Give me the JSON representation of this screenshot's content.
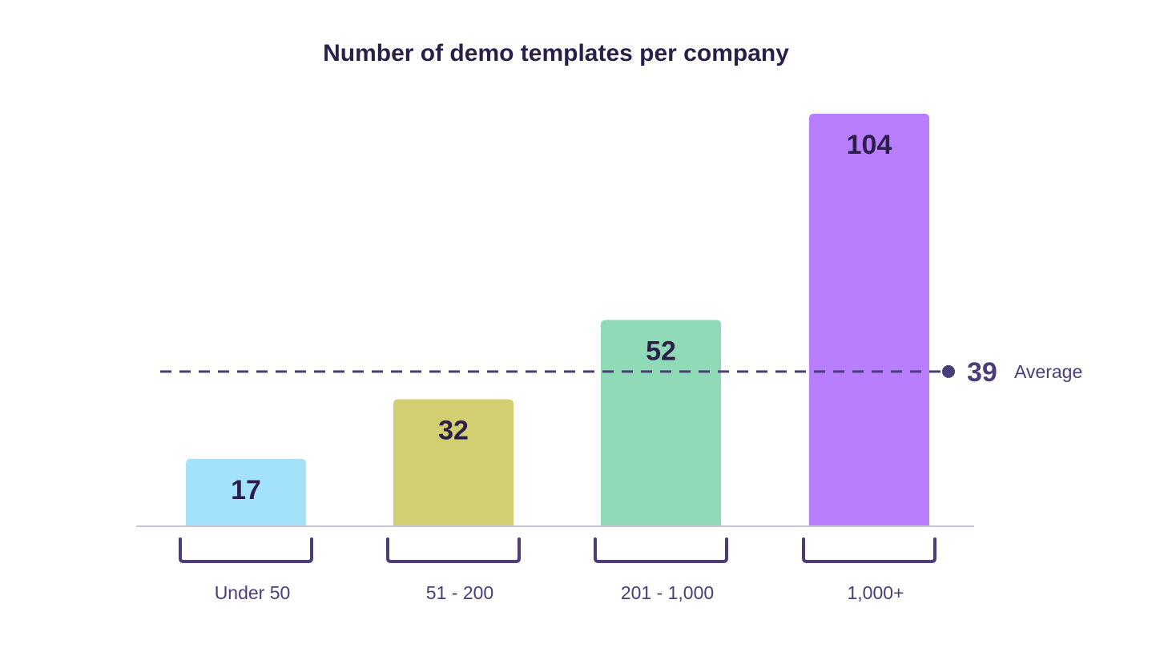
{
  "chart_data": {
    "type": "bar",
    "title": "Number of demo templates per company",
    "categories": [
      "Under 50",
      "51 - 200",
      "201 - 1,000",
      "1,000+"
    ],
    "values": [
      17,
      32,
      52,
      104
    ],
    "value_labels": [
      "17",
      "32",
      "52",
      "104"
    ],
    "colors": [
      "#a3e1fd",
      "#d2cf73",
      "#8fd9b6",
      "#b87efe"
    ],
    "reference_line": {
      "value": 39,
      "value_label": "39",
      "label": "Average",
      "style": "dashed",
      "color": "#4a3d7a"
    },
    "baseline_color": "#c9c4d6",
    "bracket_color": "#4a3d7a",
    "xlabel": "",
    "ylabel": "",
    "ylim": [
      0,
      110
    ],
    "grid": false,
    "legend": "none"
  }
}
